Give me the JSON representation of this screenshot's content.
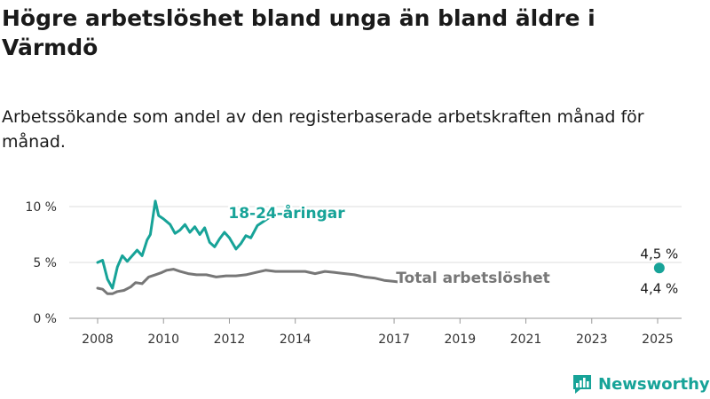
{
  "title": "Högre arbetslöshet bland unga än bland äldre i Värmdö",
  "subtitle": "Arbetssökande som andel av den registerbaserade arbetskraften månad för månad.",
  "logo_text": "Newsworthy",
  "colors": {
    "young": "#17a398",
    "total": "#777777",
    "text": "#1a1a1a"
  },
  "chart_data": {
    "type": "line",
    "title": "Högre arbetslöshet bland unga än bland äldre i Värmdö",
    "ylim": [
      0,
      10
    ],
    "yticks": [
      {
        "value": 0,
        "label": "0 %"
      },
      {
        "value": 5,
        "label": "5 %"
      },
      {
        "value": 10,
        "label": "10 %"
      }
    ],
    "xlim": [
      2007.6,
      2025.6
    ],
    "xticks": [
      "2008",
      "2010",
      "2012",
      "2014",
      "2017",
      "2019",
      "2021",
      "2023",
      "2025"
    ],
    "grid": true,
    "series": [
      {
        "name": "18-24-åringar",
        "color": "#17a398",
        "end_label": "4,5 %",
        "points": [
          [
            2008.0,
            5.0
          ],
          [
            2008.15,
            5.2
          ],
          [
            2008.3,
            3.5
          ],
          [
            2008.45,
            2.7
          ],
          [
            2008.6,
            4.6
          ],
          [
            2008.75,
            5.6
          ],
          [
            2008.9,
            5.1
          ],
          [
            2009.05,
            5.6
          ],
          [
            2009.2,
            6.1
          ],
          [
            2009.35,
            5.6
          ],
          [
            2009.5,
            7.0
          ],
          [
            2009.6,
            7.5
          ],
          [
            2009.75,
            10.5
          ],
          [
            2009.85,
            9.2
          ],
          [
            2010.0,
            8.9
          ],
          [
            2010.2,
            8.4
          ],
          [
            2010.35,
            7.6
          ],
          [
            2010.5,
            7.9
          ],
          [
            2010.65,
            8.4
          ],
          [
            2010.8,
            7.7
          ],
          [
            2010.95,
            8.2
          ],
          [
            2011.1,
            7.5
          ],
          [
            2011.25,
            8.1
          ],
          [
            2011.4,
            6.8
          ],
          [
            2011.55,
            6.4
          ],
          [
            2011.7,
            7.1
          ],
          [
            2011.85,
            7.7
          ],
          [
            2012.0,
            7.2
          ],
          [
            2012.2,
            6.2
          ],
          [
            2012.35,
            6.7
          ],
          [
            2012.5,
            7.4
          ],
          [
            2012.65,
            7.2
          ],
          [
            2012.85,
            8.3
          ],
          [
            2013.0,
            8.6
          ],
          [
            2013.3,
            9.2
          ]
        ]
      },
      {
        "name": "Total arbetslöshet",
        "color": "#777777",
        "end_label": "4,4 %",
        "points": [
          [
            2008.0,
            2.7
          ],
          [
            2008.15,
            2.6
          ],
          [
            2008.3,
            2.2
          ],
          [
            2008.45,
            2.2
          ],
          [
            2008.6,
            2.4
          ],
          [
            2008.8,
            2.5
          ],
          [
            2009.0,
            2.8
          ],
          [
            2009.15,
            3.2
          ],
          [
            2009.35,
            3.1
          ],
          [
            2009.55,
            3.7
          ],
          [
            2009.75,
            3.9
          ],
          [
            2009.95,
            4.1
          ],
          [
            2010.1,
            4.3
          ],
          [
            2010.3,
            4.4
          ],
          [
            2010.5,
            4.2
          ],
          [
            2010.75,
            4.0
          ],
          [
            2011.0,
            3.9
          ],
          [
            2011.3,
            3.9
          ],
          [
            2011.6,
            3.7
          ],
          [
            2011.9,
            3.8
          ],
          [
            2012.2,
            3.8
          ],
          [
            2012.5,
            3.9
          ],
          [
            2012.8,
            4.1
          ],
          [
            2013.1,
            4.3
          ],
          [
            2013.4,
            4.2
          ],
          [
            2013.7,
            4.2
          ],
          [
            2014.0,
            4.2
          ],
          [
            2014.3,
            4.2
          ],
          [
            2014.6,
            4.0
          ],
          [
            2014.9,
            4.2
          ],
          [
            2015.2,
            4.1
          ],
          [
            2015.5,
            4.0
          ],
          [
            2015.8,
            3.9
          ],
          [
            2016.1,
            3.7
          ],
          [
            2016.4,
            3.6
          ],
          [
            2016.7,
            3.4
          ],
          [
            2017.0,
            3.3
          ],
          [
            2017.3,
            3.2
          ]
        ]
      }
    ]
  }
}
